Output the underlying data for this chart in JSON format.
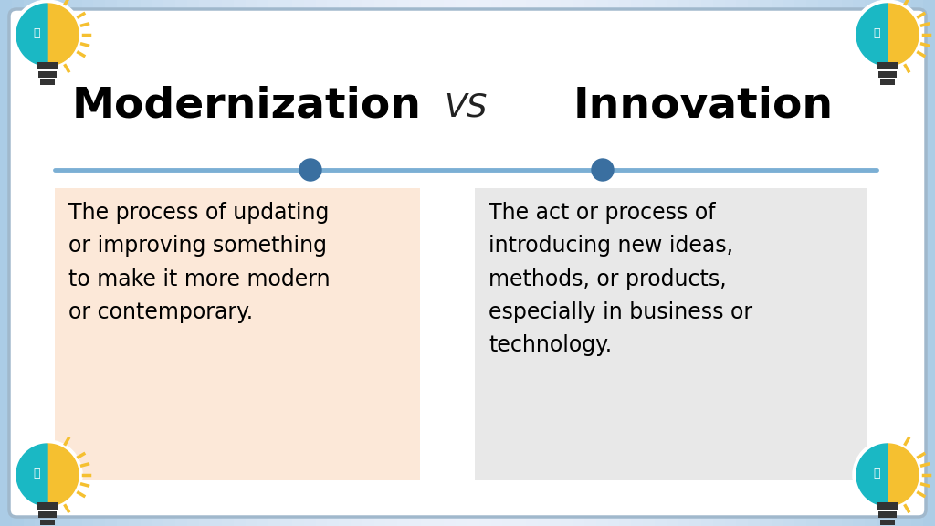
{
  "title_left": "Modernization",
  "title_vs": "VS",
  "title_right": "Innovation",
  "left_def": "The process of updating\nor improving something\nto make it more modern\nor contemporary.",
  "right_def": "The act or process of\nintroducing new ideas,\nmethods, or products,\nespecially in business or\ntechnology.",
  "left_box_color": "#fce8d8",
  "right_box_color": "#e8e8e8",
  "line_color": "#7bafd4",
  "dot_color": "#3a6fa0",
  "title_fontsize": 34,
  "vs_fontsize": 26,
  "def_fontsize": 17,
  "border_color": "#a0b8cc",
  "bg_side_color": "#b8d0e8",
  "bg_center_color": "#dce8f4"
}
